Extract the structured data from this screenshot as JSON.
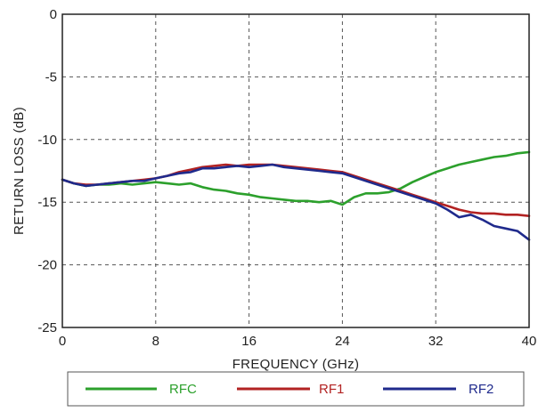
{
  "chart_data": {
    "type": "line",
    "title": "",
    "xlabel": "FREQUENCY (GHz)",
    "ylabel": "RETURN LOSS (dB)",
    "xlim": [
      0,
      40
    ],
    "ylim": [
      -25,
      0
    ],
    "xticks": [
      "0",
      "8",
      "16",
      "24",
      "32",
      "40"
    ],
    "yticks": [
      "0",
      "-5",
      "-10",
      "-15",
      "-20",
      "-25"
    ],
    "grid": true,
    "legend_position": "bottom",
    "series": [
      {
        "name": "RFC",
        "color": "#2ca02c",
        "x": [
          0,
          1,
          2,
          3,
          4,
          5,
          6,
          7,
          8,
          9,
          10,
          11,
          12,
          13,
          14,
          15,
          16,
          17,
          18,
          19,
          20,
          21,
          22,
          23,
          24,
          25,
          26,
          27,
          28,
          29,
          30,
          31,
          32,
          33,
          34,
          35,
          36,
          37,
          38,
          39,
          40
        ],
        "y": [
          -13.2,
          -13.5,
          -13.7,
          -13.6,
          -13.6,
          -13.5,
          -13.6,
          -13.5,
          -13.4,
          -13.5,
          -13.6,
          -13.5,
          -13.8,
          -14.0,
          -14.1,
          -14.3,
          -14.4,
          -14.6,
          -14.7,
          -14.8,
          -14.9,
          -14.9,
          -15.0,
          -14.9,
          -15.2,
          -14.6,
          -14.3,
          -14.3,
          -14.2,
          -13.9,
          -13.4,
          -13.0,
          -12.6,
          -12.3,
          -12.0,
          -11.8,
          -11.6,
          -11.4,
          -11.3,
          -11.1,
          -11.0
        ]
      },
      {
        "name": "RF1",
        "color": "#b22222",
        "x": [
          0,
          1,
          2,
          3,
          4,
          5,
          6,
          7,
          8,
          9,
          10,
          11,
          12,
          13,
          14,
          15,
          16,
          17,
          18,
          19,
          20,
          21,
          22,
          23,
          24,
          25,
          26,
          27,
          28,
          29,
          30,
          31,
          32,
          33,
          34,
          35,
          36,
          37,
          38,
          39,
          40
        ],
        "y": [
          -13.2,
          -13.5,
          -13.6,
          -13.6,
          -13.5,
          -13.4,
          -13.3,
          -13.2,
          -13.1,
          -12.9,
          -12.6,
          -12.4,
          -12.2,
          -12.1,
          -12.0,
          -12.1,
          -12.0,
          -12.0,
          -12.0,
          -12.1,
          -12.2,
          -12.3,
          -12.4,
          -12.5,
          -12.6,
          -12.9,
          -13.2,
          -13.5,
          -13.8,
          -14.1,
          -14.4,
          -14.7,
          -15.0,
          -15.3,
          -15.6,
          -15.8,
          -15.9,
          -15.9,
          -16.0,
          -16.0,
          -16.1
        ]
      },
      {
        "name": "RF2",
        "color": "#1f2a8c",
        "x": [
          0,
          1,
          2,
          3,
          4,
          5,
          6,
          7,
          8,
          9,
          10,
          11,
          12,
          13,
          14,
          15,
          16,
          17,
          18,
          19,
          20,
          21,
          22,
          23,
          24,
          25,
          26,
          27,
          28,
          29,
          30,
          31,
          32,
          33,
          34,
          35,
          36,
          37,
          38,
          39,
          40
        ],
        "y": [
          -13.2,
          -13.5,
          -13.7,
          -13.6,
          -13.5,
          -13.4,
          -13.3,
          -13.3,
          -13.1,
          -12.9,
          -12.7,
          -12.6,
          -12.3,
          -12.3,
          -12.2,
          -12.1,
          -12.2,
          -12.1,
          -12.0,
          -12.2,
          -12.3,
          -12.4,
          -12.5,
          -12.6,
          -12.7,
          -13.0,
          -13.3,
          -13.6,
          -13.9,
          -14.2,
          -14.5,
          -14.8,
          -15.1,
          -15.6,
          -16.2,
          -16.0,
          -16.4,
          -16.9,
          -17.1,
          -17.3,
          -18.0
        ]
      }
    ]
  }
}
